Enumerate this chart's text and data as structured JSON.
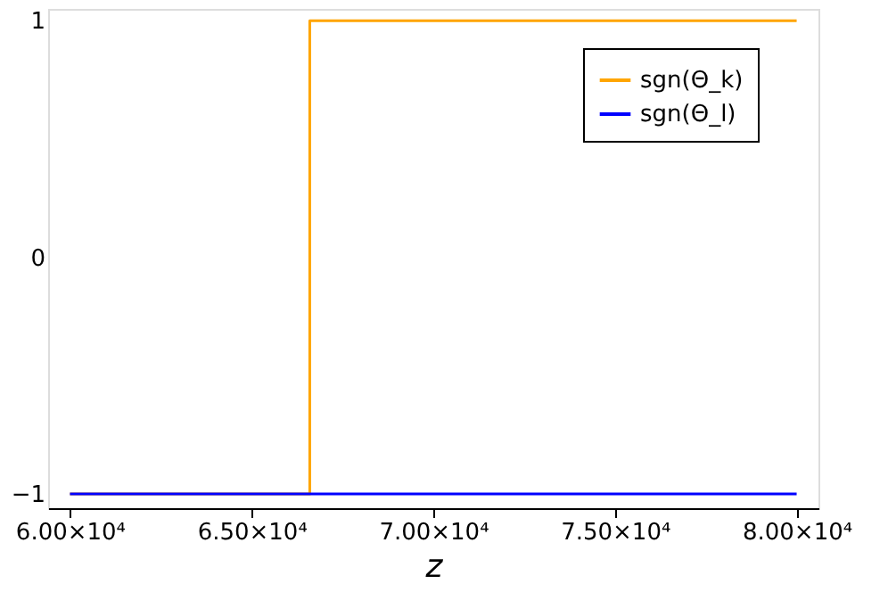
{
  "chart_data": {
    "type": "step",
    "xlabel": "z",
    "series": [
      {
        "name": "sgn(Θ_k)",
        "color": "#ffa500",
        "x": [
          60000,
          66600,
          80000
        ],
        "values": [
          -1,
          1,
          1
        ]
      },
      {
        "name": "sgn(Θ_l)",
        "color": "#0000ff",
        "x": [
          60000,
          80000
        ],
        "values": [
          -1,
          -1
        ]
      }
    ],
    "xlim": [
      59400,
      80600
    ],
    "xticks": [
      {
        "value": 60000,
        "label": "6.00×10⁴"
      },
      {
        "value": 65000,
        "label": "6.50×10⁴"
      },
      {
        "value": 70000,
        "label": "7.00×10⁴"
      },
      {
        "value": 75000,
        "label": "7.50×10⁴"
      },
      {
        "value": 80000,
        "label": "8.00×10⁴"
      }
    ],
    "ylim": [
      -1.06,
      1.05
    ],
    "yticks": [
      {
        "value": -1,
        "label": "−1"
      },
      0,
      1
    ],
    "grid": false,
    "legend": "top right",
    "line_style": "solid",
    "marker": "none"
  }
}
